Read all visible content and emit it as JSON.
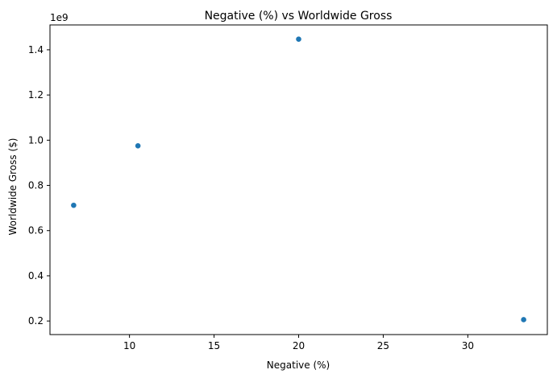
{
  "chart_data": {
    "type": "scatter",
    "title": "Negative (%) vs Worldwide Gross",
    "xlabel": "Negative (%)",
    "ylabel": "Worldwide Gross ($)",
    "y_offset_label": "1e9",
    "y_scale": 1000000000,
    "xlim": [
      5.3,
      34.7
    ],
    "ylim": [
      140000000,
      1510000000
    ],
    "x_ticks": [
      10,
      15,
      20,
      25,
      30
    ],
    "x_tick_labels": [
      "10",
      "15",
      "20",
      "25",
      "30"
    ],
    "y_ticks": [
      200000000,
      400000000,
      600000000,
      800000000,
      1000000000,
      1200000000,
      1400000000
    ],
    "y_tick_labels": [
      "0.2",
      "0.4",
      "0.6",
      "0.8",
      "1.0",
      "1.2",
      "1.4"
    ],
    "grid": false,
    "legend": "none",
    "marker_color": "#1f77b4",
    "points": [
      {
        "x": 6.7,
        "y": 712000000
      },
      {
        "x": 10.5,
        "y": 975000000
      },
      {
        "x": 20.0,
        "y": 1447000000
      },
      {
        "x": 33.3,
        "y": 206000000
      }
    ]
  }
}
